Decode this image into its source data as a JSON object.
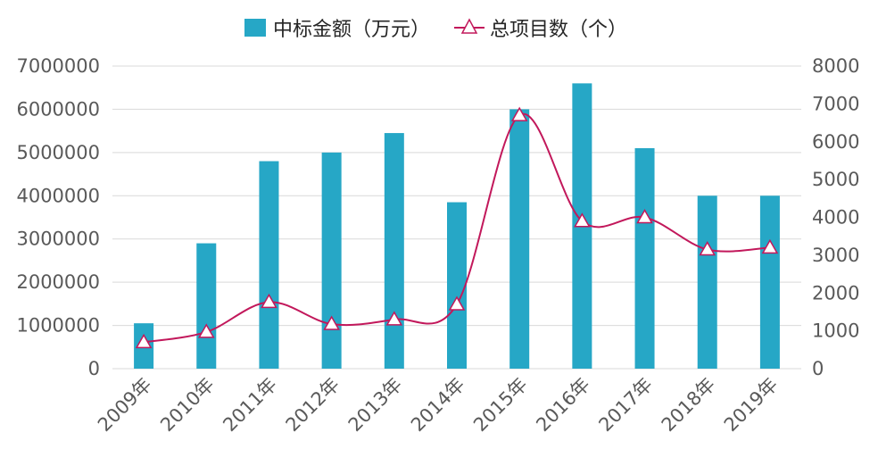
{
  "chart_data": {
    "type": "bar",
    "categories": [
      "2009年",
      "2010年",
      "2011年",
      "2012年",
      "2013年",
      "2014年",
      "2015年",
      "2016年",
      "2017年",
      "2018年",
      "2019年"
    ],
    "series": [
      {
        "name": "中标金额（万元）",
        "type": "bar",
        "axis": "left",
        "color": "#26A7C6",
        "values": [
          1050000,
          2900000,
          4800000,
          5000000,
          5450000,
          3850000,
          6000000,
          6600000,
          5100000,
          4000000,
          4000000
        ]
      },
      {
        "name": "总项目数（个）",
        "type": "line",
        "axis": "right",
        "color": "#C2185B",
        "marker": "triangle",
        "values": [
          700,
          970,
          1760,
          1180,
          1300,
          1700,
          6700,
          3900,
          4000,
          3150,
          3200
        ]
      }
    ],
    "y_left": {
      "min": 0,
      "max": 7000000,
      "ticks": [
        "0",
        "1000000",
        "2000000",
        "3000000",
        "4000000",
        "5000000",
        "6000000",
        "7000000"
      ]
    },
    "y_right": {
      "min": 0,
      "max": 8000,
      "ticks": [
        "0",
        "1000",
        "2000",
        "3000",
        "4000",
        "5000",
        "6000",
        "7000",
        "8000"
      ]
    },
    "grid": true,
    "legend_position": "top"
  }
}
